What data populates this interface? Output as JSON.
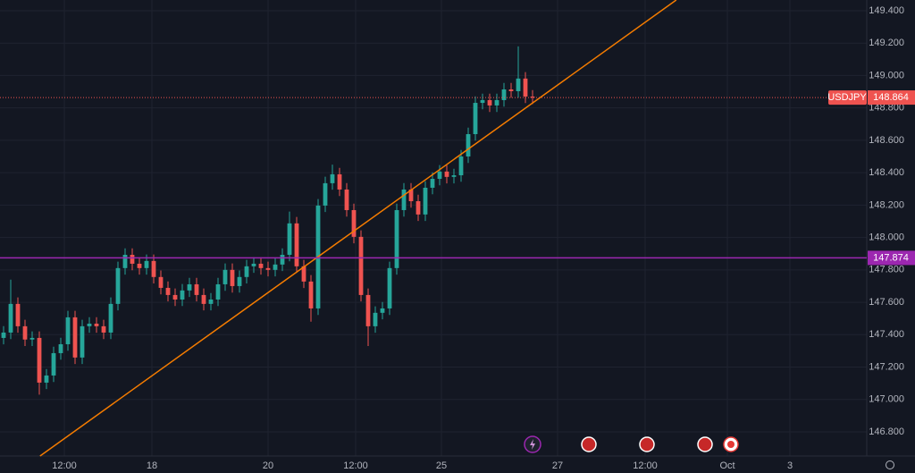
{
  "chart_data": {
    "type": "candlestick",
    "symbol": "USDJPY",
    "last_price": 148.864,
    "last_price_label": "148.864",
    "up_color": "#26a69a",
    "down_color": "#ef5350",
    "open": [
      147.38,
      147.413,
      147.59,
      147.452,
      147.37,
      147.38,
      147.104,
      147.148,
      147.286,
      147.341,
      147.507,
      147.259,
      147.452,
      147.468,
      147.452,
      147.413,
      147.59,
      147.811,
      147.893,
      147.838,
      147.811,
      147.855,
      147.756,
      147.689,
      147.645,
      147.617,
      147.673,
      147.711,
      147.645,
      147.59,
      147.617,
      147.711,
      147.8,
      147.7,
      147.756,
      147.822,
      147.838,
      147.811,
      147.8,
      147.833,
      147.893,
      148.087,
      147.822,
      147.728,
      147.562,
      148.197,
      148.335,
      148.39,
      148.296,
      148.169,
      148.004,
      147.645,
      147.452,
      147.535,
      147.562,
      147.811,
      148.169,
      148.296,
      148.224,
      148.142,
      148.307,
      148.362,
      148.407,
      148.374,
      148.384,
      148.5,
      148.638,
      148.831,
      148.848,
      148.815,
      148.848,
      148.914,
      148.903,
      148.981,
      148.87
    ],
    "high": [
      147.453,
      147.74,
      147.63,
      147.492,
      147.42,
      147.42,
      147.188,
      147.326,
      147.381,
      147.547,
      147.547,
      147.492,
      147.508,
      147.508,
      147.492,
      147.63,
      147.851,
      147.933,
      147.933,
      147.878,
      147.895,
      147.895,
      147.796,
      147.729,
      147.685,
      147.713,
      147.751,
      147.751,
      147.685,
      147.657,
      147.751,
      147.84,
      147.84,
      147.796,
      147.862,
      147.878,
      147.878,
      147.851,
      147.873,
      147.933,
      148.16,
      148.127,
      147.862,
      147.768,
      148.237,
      148.375,
      148.45,
      148.43,
      148.336,
      148.209,
      148.044,
      147.685,
      147.575,
      147.602,
      147.851,
      148.209,
      148.336,
      148.336,
      148.264,
      148.347,
      148.402,
      148.447,
      148.447,
      148.424,
      148.54,
      148.678,
      148.871,
      148.888,
      148.888,
      148.888,
      148.954,
      148.954,
      149.18,
      149.021,
      148.91
    ],
    "low": [
      147.34,
      147.373,
      147.412,
      147.33,
      147.33,
      147.03,
      147.064,
      147.108,
      147.246,
      147.301,
      147.219,
      147.219,
      147.412,
      147.412,
      147.373,
      147.373,
      147.55,
      147.771,
      147.798,
      147.771,
      147.771,
      147.716,
      147.649,
      147.605,
      147.577,
      147.577,
      147.633,
      147.605,
      147.55,
      147.55,
      147.577,
      147.671,
      147.66,
      147.66,
      147.716,
      147.782,
      147.771,
      147.76,
      147.76,
      147.793,
      147.853,
      147.782,
      147.688,
      147.48,
      147.522,
      148.157,
      148.295,
      148.256,
      148.129,
      147.964,
      147.605,
      147.33,
      147.412,
      147.495,
      147.522,
      147.771,
      148.129,
      148.184,
      148.102,
      148.102,
      148.267,
      148.322,
      148.334,
      148.334,
      148.344,
      148.46,
      148.598,
      148.791,
      148.775,
      148.775,
      148.808,
      148.863,
      148.863,
      148.83,
      148.824
    ],
    "close": [
      147.413,
      147.59,
      147.452,
      147.37,
      147.38,
      147.104,
      147.148,
      147.286,
      147.341,
      147.507,
      147.259,
      147.452,
      147.468,
      147.452,
      147.413,
      147.59,
      147.811,
      147.893,
      147.838,
      147.811,
      147.855,
      147.756,
      147.689,
      147.645,
      147.617,
      147.673,
      147.711,
      147.645,
      147.59,
      147.617,
      147.711,
      147.8,
      147.7,
      147.756,
      147.822,
      147.838,
      147.811,
      147.8,
      147.833,
      147.893,
      148.087,
      147.822,
      147.728,
      147.562,
      148.197,
      148.335,
      148.39,
      148.296,
      148.169,
      148.004,
      147.645,
      147.452,
      147.535,
      147.562,
      147.811,
      148.169,
      148.296,
      148.224,
      148.142,
      148.307,
      148.362,
      148.407,
      148.374,
      148.384,
      148.5,
      148.638,
      148.831,
      148.848,
      148.815,
      148.848,
      148.914,
      148.903,
      148.981,
      148.87,
      148.864
    ],
    "horizontal_line": {
      "value": 147.874,
      "label": "147.874",
      "color": "#9c27b0"
    },
    "trend_line": {
      "x": [
        5.1,
        94.1
      ],
      "y": [
        146.651,
        149.466
      ],
      "color": "#f57c00"
    },
    "xlim": [
      -0.5,
      120.75
    ],
    "ylim": [
      146.651,
      149.466
    ],
    "xticks": [
      {
        "value": 8.5,
        "label": "12:00"
      },
      {
        "value": 20.75,
        "label": "18"
      },
      {
        "value": 37,
        "label": "20"
      },
      {
        "value": 49.25,
        "label": "12:00"
      },
      {
        "value": 61.25,
        "label": "25"
      },
      {
        "value": 77.5,
        "label": "27"
      },
      {
        "value": 89.75,
        "label": "12:00"
      },
      {
        "value": 101.25,
        "label": "Oct"
      },
      {
        "value": 110,
        "label": "3"
      }
    ],
    "yticks": [
      {
        "value": 146.8,
        "label": "146.800"
      },
      {
        "value": 147.0,
        "label": "147.000"
      },
      {
        "value": 147.2,
        "label": "147.200"
      },
      {
        "value": 147.4,
        "label": "147.400"
      },
      {
        "value": 147.6,
        "label": "147.600"
      },
      {
        "value": 147.8,
        "label": "147.800"
      },
      {
        "value": 148.0,
        "label": "148.000"
      },
      {
        "value": 148.2,
        "label": "148.200"
      },
      {
        "value": 148.4,
        "label": "148.400"
      },
      {
        "value": 148.6,
        "label": "148.600"
      },
      {
        "value": 148.8,
        "label": "148.800"
      },
      {
        "value": 149.0,
        "label": "149.000"
      },
      {
        "value": 149.2,
        "label": "149.200"
      },
      {
        "value": 149.4,
        "label": "149.400"
      }
    ]
  }
}
